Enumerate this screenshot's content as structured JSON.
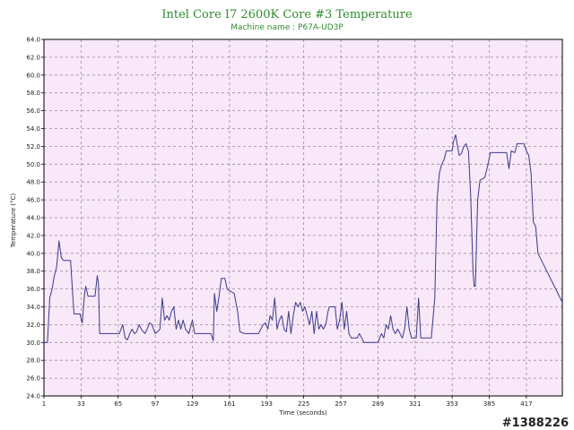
{
  "chart_data": {
    "type": "line",
    "title": "Intel Core I7 2600K Core #3 Temperature",
    "subtitle": "Machine name : P67A-UD3P",
    "xlabel": "Time (seconds)",
    "ylabel": "Temperature (°C)",
    "xlim": [
      1,
      448
    ],
    "ylim": [
      24,
      64
    ],
    "x_ticks": [
      1,
      33,
      65,
      97,
      129,
      161,
      193,
      225,
      257,
      289,
      321,
      353,
      385,
      417
    ],
    "y_ticks": [
      "24.0",
      "26.0",
      "28.0",
      "30.0",
      "32.0",
      "34.0",
      "36.0",
      "38.0",
      "40.0",
      "42.0",
      "44.0",
      "46.0",
      "48.0",
      "50.0",
      "52.0",
      "54.0",
      "56.0",
      "58.0",
      "60.0",
      "62.0",
      "64.0"
    ],
    "grid": true,
    "series": [
      {
        "color": "#3a3a8c",
        "points": [
          [
            1,
            30.0
          ],
          [
            4,
            30.0
          ],
          [
            6,
            35.0
          ],
          [
            8,
            36.0
          ],
          [
            10,
            37.5
          ],
          [
            12,
            38.5
          ],
          [
            14,
            41.4
          ],
          [
            16,
            39.5
          ],
          [
            18,
            39.2
          ],
          [
            24,
            39.2
          ],
          [
            26,
            35.0
          ],
          [
            27,
            33.2
          ],
          [
            32,
            33.2
          ],
          [
            34,
            32.2
          ],
          [
            36,
            35.5
          ],
          [
            37,
            36.3
          ],
          [
            39,
            35.2
          ],
          [
            45,
            35.2
          ],
          [
            47,
            37.5
          ],
          [
            48,
            36.5
          ],
          [
            49,
            31.0
          ],
          [
            54,
            31.0
          ],
          [
            60,
            31.0
          ],
          [
            66,
            31.0
          ],
          [
            69,
            32.0
          ],
          [
            71,
            30.5
          ],
          [
            73,
            30.3
          ],
          [
            75,
            31.0
          ],
          [
            77,
            31.5
          ],
          [
            79,
            31.0
          ],
          [
            81,
            31.2
          ],
          [
            83,
            32.0
          ],
          [
            85,
            31.5
          ],
          [
            88,
            31.0
          ],
          [
            90,
            31.5
          ],
          [
            92,
            32.2
          ],
          [
            94,
            32.0
          ],
          [
            97,
            31.0
          ],
          [
            99,
            31.2
          ],
          [
            101,
            31.5
          ],
          [
            103,
            35.0
          ],
          [
            105,
            32.5
          ],
          [
            107,
            33.0
          ],
          [
            109,
            32.5
          ],
          [
            111,
            33.5
          ],
          [
            113,
            34.0
          ],
          [
            115,
            31.5
          ],
          [
            117,
            32.5
          ],
          [
            119,
            31.5
          ],
          [
            121,
            32.5
          ],
          [
            123,
            31.5
          ],
          [
            126,
            31.0
          ],
          [
            129,
            32.5
          ],
          [
            131,
            31.0
          ],
          [
            134,
            31.0
          ],
          [
            140,
            31.0
          ],
          [
            145,
            31.0
          ],
          [
            147,
            30.2
          ],
          [
            148,
            35.5
          ],
          [
            150,
            33.5
          ],
          [
            152,
            35.2
          ],
          [
            154,
            37.2
          ],
          [
            157,
            37.2
          ],
          [
            159,
            36.0
          ],
          [
            161,
            35.8
          ],
          [
            165,
            35.5
          ],
          [
            168,
            33.5
          ],
          [
            170,
            31.2
          ],
          [
            174,
            31.0
          ],
          [
            180,
            31.0
          ],
          [
            186,
            31.0
          ],
          [
            188,
            31.5
          ],
          [
            190,
            32.0
          ],
          [
            192,
            32.2
          ],
          [
            194,
            31.5
          ],
          [
            196,
            33.0
          ],
          [
            198,
            32.5
          ],
          [
            200,
            35.0
          ],
          [
            202,
            31.5
          ],
          [
            204,
            32.5
          ],
          [
            206,
            33.0
          ],
          [
            208,
            31.5
          ],
          [
            210,
            31.2
          ],
          [
            212,
            33.5
          ],
          [
            214,
            31.0
          ],
          [
            216,
            33.0
          ],
          [
            218,
            34.5
          ],
          [
            220,
            34.0
          ],
          [
            222,
            34.5
          ],
          [
            224,
            33.5
          ],
          [
            226,
            34.0
          ],
          [
            228,
            33.0
          ],
          [
            230,
            32.0
          ],
          [
            232,
            33.5
          ],
          [
            234,
            31.0
          ],
          [
            236,
            33.5
          ],
          [
            238,
            31.5
          ],
          [
            240,
            32.0
          ],
          [
            242,
            31.5
          ],
          [
            244,
            32.0
          ],
          [
            246,
            33.5
          ],
          [
            247,
            34.0
          ],
          [
            252,
            34.0
          ],
          [
            254,
            31.5
          ],
          [
            256,
            32.5
          ],
          [
            258,
            34.5
          ],
          [
            260,
            31.5
          ],
          [
            262,
            33.5
          ],
          [
            264,
            31.0
          ],
          [
            266,
            30.5
          ],
          [
            271,
            30.5
          ],
          [
            273,
            31.0
          ],
          [
            275,
            30.5
          ],
          [
            277,
            30.0
          ],
          [
            285,
            30.0
          ],
          [
            289,
            30.0
          ],
          [
            292,
            31.0
          ],
          [
            294,
            30.5
          ],
          [
            296,
            32.0
          ],
          [
            298,
            31.5
          ],
          [
            300,
            33.0
          ],
          [
            302,
            31.5
          ],
          [
            304,
            31.0
          ],
          [
            306,
            31.5
          ],
          [
            308,
            31.0
          ],
          [
            310,
            30.5
          ],
          [
            312,
            31.5
          ],
          [
            314,
            34.0
          ],
          [
            316,
            31.5
          ],
          [
            318,
            30.5
          ],
          [
            322,
            30.5
          ],
          [
            324,
            35.0
          ],
          [
            326,
            30.5
          ],
          [
            330,
            30.5
          ],
          [
            335,
            30.5
          ],
          [
            338,
            35.0
          ],
          [
            340,
            46.0
          ],
          [
            342,
            49.0
          ],
          [
            344,
            50.0
          ],
          [
            346,
            50.5
          ],
          [
            348,
            51.5
          ],
          [
            353,
            51.5
          ],
          [
            354,
            52.5
          ],
          [
            356,
            53.3
          ],
          [
            357,
            52.5
          ],
          [
            359,
            51.0
          ],
          [
            361,
            51.2
          ],
          [
            363,
            52.0
          ],
          [
            365,
            52.3
          ],
          [
            367,
            51.5
          ],
          [
            369,
            46.5
          ],
          [
            371,
            38.0
          ],
          [
            372,
            36.3
          ],
          [
            373,
            36.3
          ],
          [
            375,
            46.0
          ],
          [
            377,
            48.2
          ],
          [
            381,
            48.5
          ],
          [
            383,
            49.5
          ],
          [
            386,
            51.3
          ],
          [
            400,
            51.3
          ],
          [
            402,
            49.5
          ],
          [
            404,
            51.5
          ],
          [
            407,
            51.3
          ],
          [
            409,
            52.3
          ],
          [
            415,
            52.3
          ],
          [
            417,
            51.5
          ],
          [
            419,
            51.0
          ],
          [
            421,
            49.0
          ],
          [
            423,
            43.5
          ],
          [
            425,
            43.0
          ],
          [
            427,
            40.0
          ],
          [
            448,
            34.5
          ]
        ]
      }
    ]
  },
  "watermark": "#1388226"
}
